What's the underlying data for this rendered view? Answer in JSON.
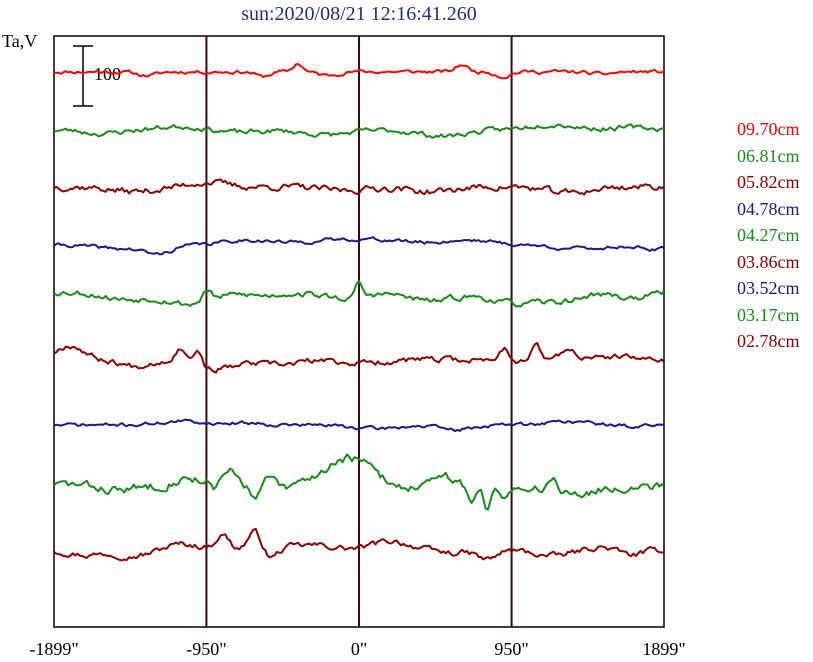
{
  "chart_data": {
    "type": "line",
    "title": "sun:2020/08/21 12:16:41.260",
    "ylabel": "Ta,V",
    "scale_bar": {
      "label": "100",
      "value": 100
    },
    "xlim": [
      -1899,
      1899
    ],
    "x_ticks": [
      {
        "value": -1899,
        "label": "-1899\""
      },
      {
        "value": -950,
        "label": "-950\""
      },
      {
        "value": 0,
        "label": "0\""
      },
      {
        "value": 950,
        "label": "950\""
      },
      {
        "value": 1899,
        "label": "1899\""
      }
    ],
    "vertical_lines": [
      -950,
      0,
      950
    ],
    "legend_placement": "right",
    "series": [
      {
        "name": "09.70cm",
        "color": "#ff0000",
        "seed": 11,
        "base": 2,
        "amp": 5,
        "features": [
          [
            -1320,
            -6,
            90
          ],
          [
            -600,
            -8,
            60
          ],
          [
            -380,
            14,
            40
          ],
          [
            -200,
            -6,
            80
          ],
          [
            640,
            12,
            50
          ],
          [
            900,
            -8,
            60
          ],
          [
            1500,
            -4,
            100
          ]
        ]
      },
      {
        "name": "06.81cm",
        "color": "#1a8a1a",
        "seed": 23,
        "base": 0,
        "amp": 7,
        "features": [
          [
            -1600,
            -6,
            150
          ],
          [
            -1100,
            6,
            200
          ],
          [
            -750,
            -4,
            200
          ],
          [
            -200,
            -8,
            200
          ],
          [
            520,
            -10,
            200
          ],
          [
            1200,
            10,
            200
          ],
          [
            1700,
            4,
            200
          ]
        ]
      },
      {
        "name": "05.82cm",
        "color": "#8b0000",
        "seed": 37,
        "base": 2,
        "amp": 9,
        "features": [
          [
            -1400,
            -8,
            200
          ],
          [
            -950,
            8,
            150
          ],
          [
            -100,
            -6,
            200
          ],
          [
            450,
            -8,
            200
          ],
          [
            1300,
            -10,
            200
          ]
        ]
      },
      {
        "name": "04.78cm",
        "color": "#1a1a8b",
        "seed": 41,
        "base": 0,
        "amp": 5,
        "features": [
          [
            -1500,
            -6,
            200
          ],
          [
            -1250,
            -14,
            120
          ],
          [
            -700,
            8,
            200
          ],
          [
            0,
            10,
            400
          ],
          [
            700,
            8,
            200
          ],
          [
            1400,
            -6,
            250
          ],
          [
            1850,
            -8,
            100
          ]
        ]
      },
      {
        "name": "04.27cm",
        "color": "#1a8a1a",
        "seed": 53,
        "base": 5,
        "amp": 8,
        "features": [
          [
            -1450,
            -12,
            200
          ],
          [
            -1050,
            -20,
            200
          ],
          [
            -950,
            18,
            40
          ],
          [
            -600,
            -6,
            150
          ],
          [
            -100,
            -10,
            200
          ],
          [
            0,
            25,
            25
          ],
          [
            450,
            -15,
            200
          ],
          [
            1000,
            -20,
            250
          ],
          [
            1300,
            -10,
            150
          ],
          [
            1700,
            -10,
            150
          ]
        ]
      },
      {
        "name": "03.86cm",
        "color": "#8b0000",
        "seed": 67,
        "base": -25,
        "amp": 8,
        "features": [
          [
            -1800,
            25,
            120
          ],
          [
            -1400,
            -10,
            120
          ],
          [
            -1100,
            25,
            60
          ],
          [
            -1000,
            28,
            30
          ],
          [
            -900,
            -15,
            200
          ],
          [
            -500,
            -8,
            150
          ],
          [
            0,
            -5,
            200
          ],
          [
            900,
            20,
            40
          ],
          [
            1100,
            25,
            40
          ],
          [
            1300,
            15,
            80
          ],
          [
            1600,
            5,
            150
          ]
        ]
      },
      {
        "name": "03.52cm",
        "color": "#1a1a8b",
        "seed": 71,
        "base": 0,
        "amp": 5,
        "features": [
          [
            -1100,
            6,
            200
          ],
          [
            -700,
            4,
            150
          ],
          [
            100,
            -6,
            200
          ],
          [
            600,
            -8,
            150
          ],
          [
            1300,
            6,
            200
          ],
          [
            1700,
            -2,
            150
          ]
        ]
      },
      {
        "name": "03.17cm",
        "color": "#1a8a1a",
        "seed": 83,
        "base": 10,
        "amp": 12,
        "features": [
          [
            -1500,
            -10,
            200
          ],
          [
            -1050,
            10,
            120
          ],
          [
            -900,
            -15,
            30
          ],
          [
            -800,
            20,
            60
          ],
          [
            -650,
            -25,
            40
          ],
          [
            -550,
            10,
            40
          ],
          [
            -450,
            -10,
            50
          ],
          [
            -150,
            25,
            150
          ],
          [
            0,
            30,
            150
          ],
          [
            300,
            -5,
            150
          ],
          [
            550,
            10,
            100
          ],
          [
            700,
            -35,
            40
          ],
          [
            800,
            -40,
            30
          ],
          [
            900,
            -20,
            30
          ],
          [
            1100,
            -10,
            150
          ],
          [
            1200,
            20,
            40
          ],
          [
            1400,
            -15,
            150
          ],
          [
            1700,
            -5,
            150
          ]
        ]
      },
      {
        "name": "02.78cm",
        "color": "#8b0000",
        "seed": 97,
        "base": 0,
        "amp": 8,
        "features": [
          [
            -1700,
            -8,
            150
          ],
          [
            -1400,
            -10,
            150
          ],
          [
            -1100,
            10,
            150
          ],
          [
            -850,
            25,
            60
          ],
          [
            -650,
            30,
            60
          ],
          [
            -550,
            -15,
            60
          ],
          [
            -300,
            8,
            200
          ],
          [
            200,
            15,
            150
          ],
          [
            600,
            -5,
            150
          ],
          [
            800,
            -15,
            80
          ],
          [
            1200,
            -10,
            150
          ],
          [
            1500,
            5,
            100
          ],
          [
            1700,
            -8,
            100
          ]
        ]
      }
    ]
  }
}
